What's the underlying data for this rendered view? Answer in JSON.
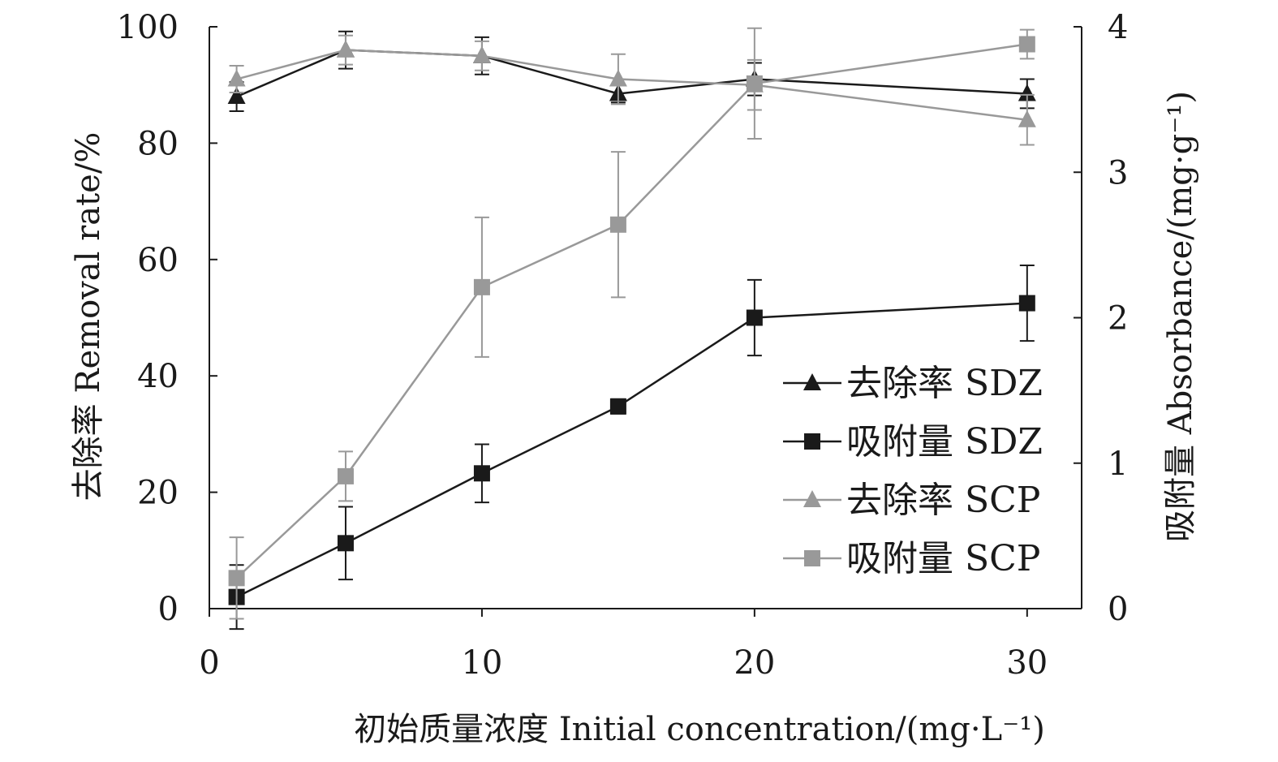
{
  "chart_data": {
    "type": "line",
    "xlabel": "初始质量浓度 Initial concentration/(mg·L⁻¹)",
    "ylabel_left": "去除率 Removal rate/%",
    "ylabel_right": "吸附量 Absorbance/(mg·g⁻¹)",
    "xlim": [
      0,
      32
    ],
    "ylim_left": [
      0,
      100
    ],
    "ylim_right": [
      0,
      4
    ],
    "xticks": [
      0,
      10,
      20,
      30
    ],
    "yticks_left": [
      0,
      20,
      40,
      60,
      80,
      100
    ],
    "yticks_right": [
      0,
      1,
      2,
      3,
      4
    ],
    "x": [
      1,
      5,
      10,
      15,
      20,
      30
    ],
    "grid": false,
    "legend_position": "right",
    "series": [
      {
        "name": "去除率 SDZ",
        "axis": "left",
        "marker": "triangle",
        "color": "#1a1a1a",
        "values": [
          88,
          96,
          95,
          88.5,
          91,
          88.5
        ],
        "errors": [
          2.5,
          3.2,
          3.2,
          1.5,
          2.8,
          2.5
        ]
      },
      {
        "name": "吸附量 SDZ",
        "axis": "right",
        "marker": "square",
        "color": "#1a1a1a",
        "values": [
          0.08,
          0.45,
          0.93,
          1.39,
          2.0,
          2.1
        ],
        "errors": [
          0.22,
          0.25,
          0.2,
          0.05,
          0.26,
          0.26
        ]
      },
      {
        "name": "去除率 SCP",
        "axis": "left",
        "marker": "triangle",
        "color": "#999999",
        "values": [
          91,
          96,
          95,
          91,
          90,
          84
        ],
        "errors": [
          2.3,
          2.5,
          2.5,
          4.3,
          4.3,
          4.3
        ]
      },
      {
        "name": "吸附量 SCP",
        "axis": "right",
        "marker": "square",
        "color": "#999999",
        "values": [
          0.21,
          0.91,
          2.21,
          2.64,
          3.61,
          3.88
        ],
        "errors": [
          0.28,
          0.17,
          0.48,
          0.5,
          0.38,
          0.1
        ]
      }
    ]
  }
}
